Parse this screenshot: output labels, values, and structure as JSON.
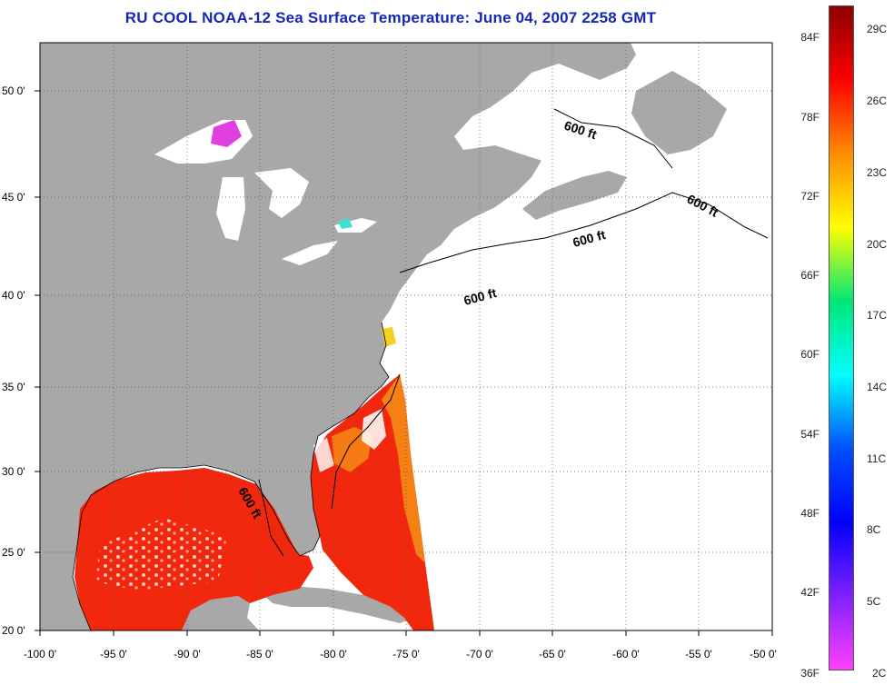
{
  "title": "RU COOL  NOAA-12  Sea Surface Temperature:  June 04, 2007 2258 GMT",
  "map": {
    "lon_labels": [
      "-100 0'",
      "-95 0'",
      "-90 0'",
      "-85 0'",
      "-80 0'",
      "-75 0'",
      "-70 0'",
      "-65 0'",
      "-60 0'",
      "-55 0'",
      "-50 0'"
    ],
    "lat_labels": [
      "50 0'",
      "45 0'",
      "40 0'",
      "35 0'",
      "30 0'",
      "25 0'",
      "20 0'"
    ],
    "contour_labels": [
      "600 ft",
      "600 ft",
      "600 ft",
      "600 ft",
      "600 ft"
    ],
    "colors": {
      "land": "#a8a8a8",
      "ocean_nodata": "#ffffff",
      "sst_main": "#f2280e",
      "sst_orange": "#f58a14",
      "frame": "#000000"
    }
  },
  "colorbar": {
    "fahrenheit_labels": [
      "84F",
      "78F",
      "72F",
      "66F",
      "60F",
      "54F",
      "48F",
      "42F",
      "36F"
    ],
    "celsius_labels": [
      "29C",
      "26C",
      "23C",
      "20C",
      "17C",
      "14C",
      "11C",
      "8C",
      "5C",
      "2C"
    ],
    "gradient": [
      "#8c0000",
      "#ff0000",
      "#ff8c00",
      "#ffff00",
      "#00e676",
      "#00ffff",
      "#0050ff",
      "#0000ff",
      "#8020ff",
      "#ff40ff"
    ]
  }
}
